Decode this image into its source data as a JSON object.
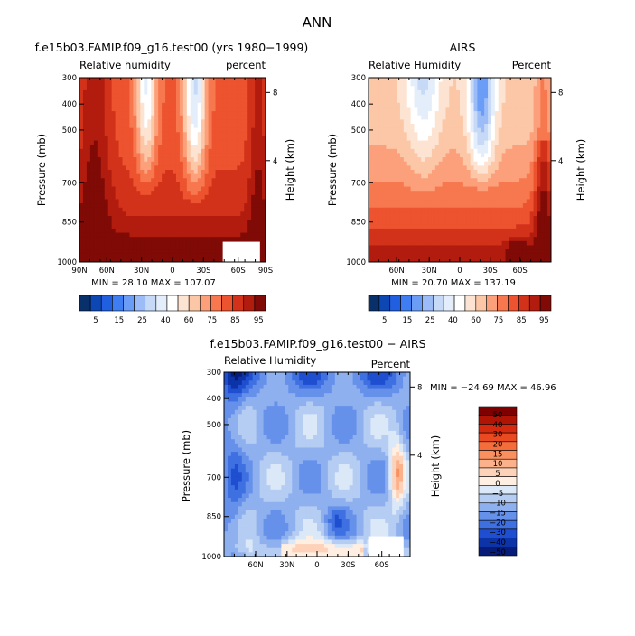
{
  "figure": {
    "title": "ANN",
    "colors": {
      "cold": "#08306b",
      "neutral": "#ffffff",
      "warm": "#800000",
      "frame": "#000000"
    }
  },
  "chart_data": [
    {
      "type": "heatmap",
      "id": "model",
      "title": "f.e15b03.FAMIP.f09_g16.test00 (yrs 1980−1999)",
      "left_label": "Relative humidity",
      "right_label": "percent",
      "ylabel": "Pressure (mb)",
      "y2label": "Height (km)",
      "yticks": [
        "300",
        "400",
        "500",
        "700",
        "850",
        "1000"
      ],
      "y2ticks": [
        "8",
        "4"
      ],
      "xticks": [
        "90N",
        "60N",
        "30N",
        "0",
        "30S",
        "60S",
        "90S"
      ],
      "stats": "MIN =   28.10   MAX =  107.07",
      "colorbar": {
        "orientation": "horizontal",
        "labels": [
          "5",
          "15",
          "25",
          "40",
          "60",
          "75",
          "85",
          "95"
        ],
        "colors": [
          "#08306b",
          "#0d47b3",
          "#1f5fe0",
          "#3f7df2",
          "#6b9df7",
          "#9bbcf7",
          "#c6d9f7",
          "#e4eefb",
          "#ffffff",
          "#fde3d1",
          "#fcc7a6",
          "#fba07a",
          "#f7784f",
          "#ec532e",
          "#d3321a",
          "#b21c0f",
          "#7f0a06"
        ]
      }
    },
    {
      "type": "heatmap",
      "id": "obs",
      "title": "AIRS",
      "left_label": "Relative Humidity",
      "right_label": "Percent",
      "ylabel": "Pressure (mb)",
      "y2label": "Height (km)",
      "yticks": [
        "300",
        "400",
        "500",
        "700",
        "850",
        "1000"
      ],
      "y2ticks": [
        "8",
        "4"
      ],
      "xticks": [
        "60N",
        "30N",
        "0",
        "30S",
        "60S"
      ],
      "stats": "MIN =   20.70   MAX =  137.19",
      "colorbar": {
        "orientation": "horizontal",
        "labels": [
          "5",
          "15",
          "25",
          "40",
          "60",
          "75",
          "85",
          "95"
        ],
        "colors": [
          "#08306b",
          "#0d47b3",
          "#1f5fe0",
          "#3f7df2",
          "#6b9df7",
          "#9bbcf7",
          "#c6d9f7",
          "#e4eefb",
          "#ffffff",
          "#fde3d1",
          "#fcc7a6",
          "#fba07a",
          "#f7784f",
          "#ec532e",
          "#d3321a",
          "#b21c0f",
          "#7f0a06"
        ]
      }
    },
    {
      "type": "heatmap",
      "id": "diff",
      "title": "f.e15b03.FAMIP.f09_g16.test00 − AIRS",
      "left_label": "Relative Humidity",
      "right_label": "Percent",
      "ylabel": "Pressure (mb)",
      "y2label": "Height (km)",
      "yticks": [
        "300",
        "400",
        "500",
        "700",
        "850",
        "1000"
      ],
      "y2ticks": [
        "8",
        "4"
      ],
      "xticks": [
        "60N",
        "30N",
        "0",
        "30S",
        "60S"
      ],
      "stats": "MIN = −24.69   MAX =  46.96",
      "colorbar": {
        "orientation": "vertical",
        "labels": [
          "50",
          "40",
          "30",
          "20",
          "15",
          "10",
          "5",
          "0",
          "−5",
          "−10",
          "−15",
          "−20",
          "−30",
          "−40",
          "−50"
        ],
        "colors": [
          "#7f0000",
          "#b01405",
          "#d42a10",
          "#ea4a22",
          "#f46d3a",
          "#f89060",
          "#fbb28c",
          "#fdd2b8",
          "#ffeee2",
          "#dbe8f8",
          "#b5cdf2",
          "#8eb0ee",
          "#6691ea",
          "#3f70e2",
          "#1f4fd0",
          "#0c33a8",
          "#061c78"
        ]
      }
    }
  ]
}
